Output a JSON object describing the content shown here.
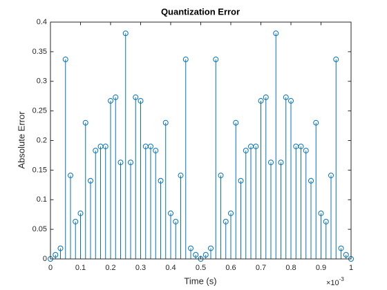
{
  "chart_data": {
    "type": "stem",
    "title": "Quantization Error",
    "x_label": "Time (s)",
    "y_label": "Absolute Error",
    "x_exponent": {
      "base": "×10",
      "power": "-3"
    },
    "color": "#0072bd",
    "x": [
      0,
      0.0167,
      0.0333,
      0.05,
      0.0667,
      0.0833,
      0.1,
      0.1167,
      0.1333,
      0.15,
      0.1667,
      0.1833,
      0.2,
      0.2167,
      0.2333,
      0.25,
      0.2667,
      0.2833,
      0.3,
      0.3167,
      0.3333,
      0.35,
      0.3667,
      0.3833,
      0.4,
      0.4167,
      0.4333,
      0.45,
      0.4667,
      0.4833,
      0.5,
      0.5167,
      0.5333,
      0.55,
      0.5667,
      0.5833,
      0.6,
      0.6167,
      0.6333,
      0.65,
      0.6667,
      0.6833,
      0.7,
      0.7167,
      0.7333,
      0.75,
      0.7667,
      0.7833,
      0.8,
      0.8167,
      0.8333,
      0.85,
      0.8667,
      0.8833,
      0.9,
      0.9167,
      0.9333,
      0.95,
      0.9667,
      0.9833,
      1
    ],
    "values": [
      0,
      0.007,
      0.018,
      0.337,
      0.141,
      0.063,
      0.077,
      0.23,
      0.132,
      0.183,
      0.19,
      0.19,
      0.267,
      0.273,
      0.163,
      0.381,
      0.163,
      0.273,
      0.267,
      0.19,
      0.19,
      0.183,
      0.132,
      0.23,
      0.077,
      0.063,
      0.141,
      0.337,
      0.018,
      0.007,
      0,
      0.007,
      0.018,
      0.337,
      0.141,
      0.063,
      0.077,
      0.23,
      0.132,
      0.183,
      0.19,
      0.19,
      0.267,
      0.273,
      0.163,
      0.381,
      0.163,
      0.273,
      0.267,
      0.19,
      0.19,
      0.183,
      0.132,
      0.23,
      0.077,
      0.063,
      0.141,
      0.337,
      0.018,
      0.007,
      0
    ],
    "xlim": [
      0,
      1
    ],
    "xticks": [
      0,
      0.1,
      0.2,
      0.3,
      0.4,
      0.5,
      0.6,
      0.7,
      0.8,
      0.9,
      1
    ],
    "ylim": [
      0,
      0.4
    ],
    "yticks": [
      0,
      0.05,
      0.1,
      0.15,
      0.2,
      0.25,
      0.3,
      0.35,
      0.4
    ],
    "grid": false
  }
}
